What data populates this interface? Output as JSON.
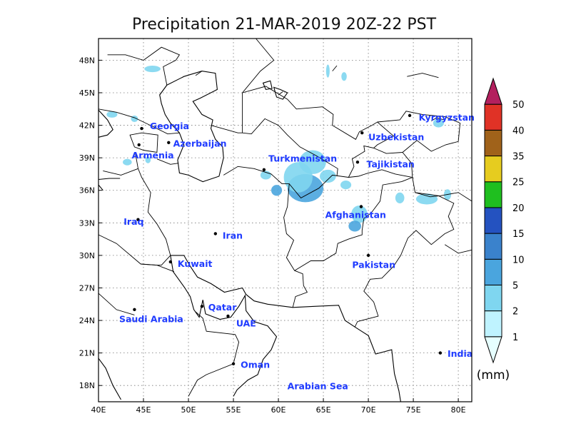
{
  "title": "Precipitation 21-MAR-2019 20Z-22 PST",
  "map": {
    "lon_range": [
      40,
      81.5
    ],
    "lat_range": [
      16.5,
      50
    ],
    "x_ticks": [
      {
        "lon": 40,
        "label": "40E"
      },
      {
        "lon": 45,
        "label": "45E"
      },
      {
        "lon": 50,
        "label": "50E"
      },
      {
        "lon": 55,
        "label": "55E"
      },
      {
        "lon": 60,
        "label": "60E"
      },
      {
        "lon": 65,
        "label": "65E"
      },
      {
        "lon": 70,
        "label": "70E"
      },
      {
        "lon": 75,
        "label": "75E"
      },
      {
        "lon": 80,
        "label": "80E"
      }
    ],
    "y_ticks": [
      {
        "lat": 18,
        "label": "18N"
      },
      {
        "lat": 21,
        "label": "21N"
      },
      {
        "lat": 24,
        "label": "24N"
      },
      {
        "lat": 27,
        "label": "27N"
      },
      {
        "lat": 30,
        "label": "30N"
      },
      {
        "lat": 33,
        "label": "33N"
      },
      {
        "lat": 36,
        "label": "36N"
      },
      {
        "lat": 39,
        "label": "39N"
      },
      {
        "lat": 42,
        "label": "42N"
      },
      {
        "lat": 45,
        "label": "45N"
      },
      {
        "lat": 48,
        "label": "48N"
      }
    ],
    "grid": "dotted"
  },
  "places": [
    {
      "name": "Georgia",
      "lon": 44.8,
      "lat": 41.7,
      "label_lon": 45.7,
      "label_lat": 41.9
    },
    {
      "name": "Armenia",
      "lon": 44.5,
      "lat": 40.2,
      "label_lon": 43.7,
      "label_lat": 39.2
    },
    {
      "name": "Azerbaijan",
      "lon": 47.8,
      "lat": 40.4,
      "label_lon": 48.3,
      "label_lat": 40.3
    },
    {
      "name": "Turkmenistan",
      "lon": 58.4,
      "lat": 37.9,
      "label_lon": 58.9,
      "label_lat": 38.9
    },
    {
      "name": "Uzbekistan",
      "lon": 69.3,
      "lat": 41.3,
      "label_lon": 70.0,
      "label_lat": 40.9
    },
    {
      "name": "Kyrgyzstan",
      "lon": 74.6,
      "lat": 42.9,
      "label_lon": 75.6,
      "label_lat": 42.7
    },
    {
      "name": "Tajikistan",
      "lon": 68.8,
      "lat": 38.6,
      "label_lon": 69.8,
      "label_lat": 38.4
    },
    {
      "name": "Afghanistan",
      "lon": 69.2,
      "lat": 34.5,
      "label_lon": 65.2,
      "label_lat": 33.7
    },
    {
      "name": "Iraq",
      "lon": 44.4,
      "lat": 33.3,
      "label_lon": 42.8,
      "label_lat": 33.1
    },
    {
      "name": "Iran",
      "lon": 53.0,
      "lat": 32.0,
      "label_lon": 53.8,
      "label_lat": 31.8
    },
    {
      "name": "Kuwait",
      "lon": 48.0,
      "lat": 29.4,
      "label_lon": 48.8,
      "label_lat": 29.2
    },
    {
      "name": "Pakistan",
      "lon": 70.0,
      "lat": 30.0,
      "label_lon": 68.2,
      "label_lat": 29.1
    },
    {
      "name": "Qatar",
      "lon": 51.5,
      "lat": 25.3,
      "label_lon": 52.2,
      "label_lat": 25.2
    },
    {
      "name": "Saudi Arabia",
      "lon": 44.0,
      "lat": 25.0,
      "label_lon": 42.3,
      "label_lat": 24.1
    },
    {
      "name": "UAE",
      "lon": 54.4,
      "lat": 24.4,
      "label_lon": 55.3,
      "label_lat": 23.7
    },
    {
      "name": "India",
      "lon": 78.0,
      "lat": 21.0,
      "label_lon": 78.8,
      "label_lat": 20.9
    },
    {
      "name": "Oman",
      "lon": 55.0,
      "lat": 20.0,
      "label_lon": 55.8,
      "label_lat": 19.9
    },
    {
      "name": "Arabian Sea",
      "lon": null,
      "lat": null,
      "label_lon": 61.0,
      "label_lat": 17.9
    }
  ],
  "colorbar": {
    "levels": [
      1,
      2,
      5,
      10,
      15,
      20,
      25,
      35,
      40,
      50
    ],
    "colors": [
      "#e6ffff",
      "#bff3ff",
      "#7fd6f0",
      "#4aa5de",
      "#3a82cc",
      "#2452c0",
      "#1fbf1f",
      "#e6cc1f",
      "#a0621a",
      "#e03226",
      "#b3205e"
    ],
    "unit": "(mm)"
  },
  "precip_color": "#7fd6f0"
}
